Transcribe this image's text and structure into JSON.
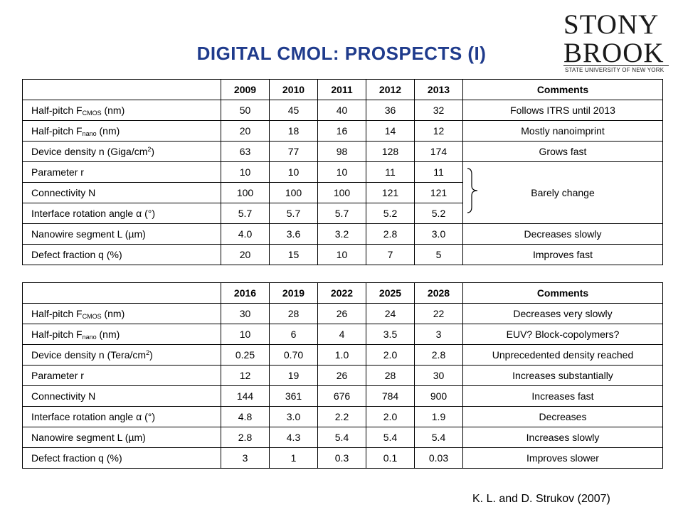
{
  "title": "DIGITAL CMOL: PROSPECTS (I)",
  "logo": {
    "line1": "STONY",
    "line2": "BROOK",
    "sub": "STATE UNIVERSITY OF NEW YORK"
  },
  "table1": {
    "headers": [
      "",
      "2009",
      "2010",
      "2011",
      "2012",
      "2013",
      "Comments"
    ],
    "rows": [
      {
        "label": "Half-pitch F",
        "sub": "CMOS",
        "label_tail": " (nm)",
        "values": [
          "50",
          "45",
          "40",
          "36",
          "32"
        ],
        "comment": "Follows ITRS until 2013"
      },
      {
        "label": "Half-pitch F",
        "sub": "nano",
        "label_tail": " (nm)",
        "values": [
          "20",
          "18",
          "16",
          "14",
          "12"
        ],
        "comment": "Mostly nanoimprint"
      },
      {
        "label": "Device density n (Giga/cm",
        "sup": "2",
        "label_tail": ")",
        "values": [
          "63",
          "77",
          "98",
          "128",
          "174"
        ],
        "comment": "Grows fast"
      },
      {
        "label": "Parameter r",
        "values": [
          "10",
          "10",
          "10",
          "11",
          "11"
        ],
        "comment": ""
      },
      {
        "label": "Connectivity N",
        "values": [
          "100",
          "100",
          "100",
          "121",
          "121"
        ],
        "comment": "Barely change"
      },
      {
        "label": "Interface rotation angle α (°)",
        "values": [
          "5.7",
          "5.7",
          "5.7",
          "5.2",
          "5.2"
        ],
        "comment": ""
      },
      {
        "label": "Nanowire segment L (µm)",
        "values": [
          "4.0",
          "3.6",
          "3.2",
          "2.8",
          "3.0"
        ],
        "comment": "Decreases slowly"
      },
      {
        "label": "Defect fraction q (%)",
        "values": [
          "20",
          "15",
          "10",
          "7",
          "5"
        ],
        "comment": "Improves fast"
      }
    ]
  },
  "table2": {
    "headers": [
      "",
      "2016",
      "2019",
      "2022",
      "2025",
      "2028",
      "Comments"
    ],
    "rows": [
      {
        "label": "Half-pitch F",
        "sub": "CMOS",
        "label_tail": " (nm)",
        "values": [
          "30",
          "28",
          "26",
          "24",
          "22"
        ],
        "comment": "Decreases very slowly"
      },
      {
        "label": "Half-pitch F",
        "sub": "nano",
        "label_tail": " (nm)",
        "values": [
          "10",
          "6",
          "4",
          "3.5",
          "3"
        ],
        "comment": "EUV? Block-copolymers?"
      },
      {
        "label": "Device density n (Tera/cm",
        "sup": "2",
        "label_tail": ")",
        "values": [
          "0.25",
          "0.70",
          "1.0",
          "2.0",
          "2.8"
        ],
        "comment": "Unprecedented density reached"
      },
      {
        "label": "Parameter r",
        "values": [
          "12",
          "19",
          "26",
          "28",
          "30"
        ],
        "comment": "Increases substantially"
      },
      {
        "label": "Connectivity N",
        "values": [
          "144",
          "361",
          "676",
          "784",
          "900"
        ],
        "comment": "Increases fast"
      },
      {
        "label": "Interface rotation angle α (°)",
        "values": [
          "4.8",
          "3.0",
          "2.2",
          "2.0",
          "1.9"
        ],
        "comment": "Decreases"
      },
      {
        "label": "Nanowire segment L (µm)",
        "values": [
          "2.8",
          "4.3",
          "5.4",
          "5.4",
          "5.4"
        ],
        "comment": "Increases slowly"
      },
      {
        "label": "Defect fraction q (%)",
        "values": [
          "3",
          "1",
          "0.3",
          "0.1",
          "0.03"
        ],
        "comment": "Improves slower"
      }
    ]
  },
  "citation": "K. L. and D. Strukov (2007)",
  "colors": {
    "title": "#1f3b8c",
    "logo_red": "#c8102e"
  }
}
